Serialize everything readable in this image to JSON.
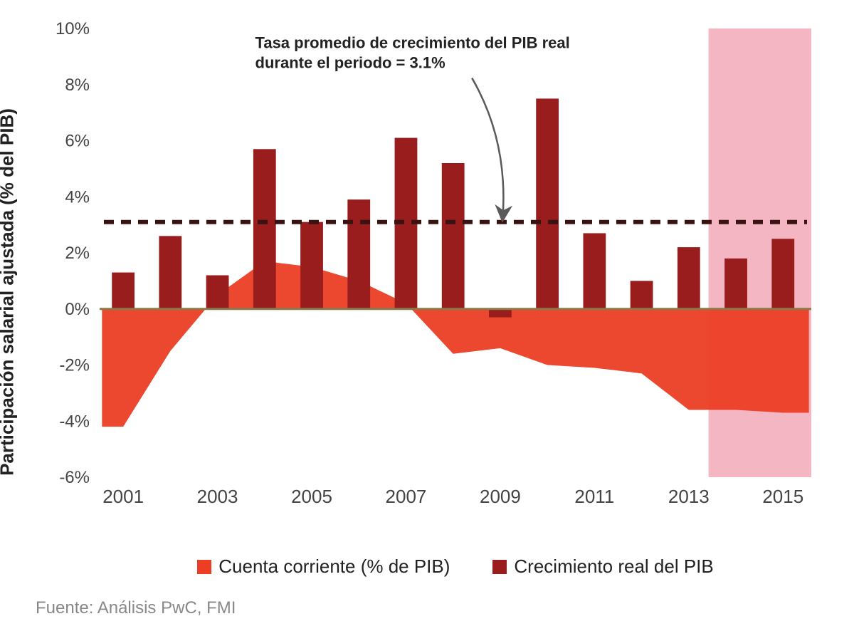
{
  "chart": {
    "type": "bar+area",
    "y_axis_label": "Participación salarial ajustada (% del PIB)",
    "ylim": [
      -6,
      10
    ],
    "ytick_step": 2,
    "yticks": [
      "-6%",
      "-4%",
      "-2%",
      "0%",
      "2%",
      "4%",
      "6%",
      "8%",
      "10%"
    ],
    "years": [
      2001,
      2002,
      2003,
      2004,
      2005,
      2006,
      2007,
      2008,
      2009,
      2010,
      2011,
      2012,
      2013,
      2014,
      2015
    ],
    "xticks": [
      "2001",
      "2003",
      "2005",
      "2007",
      "2009",
      "2011",
      "2013",
      "2015"
    ],
    "xtick_years": [
      2001,
      2003,
      2005,
      2007,
      2009,
      2011,
      2013,
      2015
    ],
    "bar_values": [
      1.3,
      2.6,
      1.2,
      5.7,
      3.1,
      3.9,
      6.1,
      5.2,
      -0.3,
      7.5,
      2.7,
      1.0,
      2.2,
      1.8,
      2.5
    ],
    "area_values": [
      -4.2,
      -1.5,
      0.5,
      1.7,
      1.5,
      1.0,
      0.2,
      -1.6,
      -1.4,
      -2.0,
      -2.1,
      -2.3,
      -3.6,
      -3.6,
      -3.7
    ],
    "reference_line_value": 3.1,
    "annotation": {
      "line1": "Tasa promedio de crecimiento del PIB real",
      "line2": "durante el periodo = 3.1%"
    },
    "highlight_band": {
      "start_year": 2013.42,
      "end_year": 2015.6
    },
    "colors": {
      "bar": "#9a1d1d",
      "area": "#eb3e25",
      "reference_line": "#3a1212",
      "axis": "#8a7a4a",
      "highlight": "#f5b6c3",
      "background": "#ffffff",
      "text": "#222222",
      "source_text": "#8a8a8a",
      "annotation_arrow": "#5a5a5a"
    },
    "bar_width_ratio": 0.48,
    "reference_dash": "14 10",
    "reference_line_width": 6,
    "axis_line_width": 3,
    "font_family": "Arial, Helvetica, sans-serif",
    "label_fontsize": 26,
    "tick_fontsize": 24,
    "annotation_fontsize": 22
  },
  "legend": {
    "area": "Cuenta corriente (% de PIB)",
    "bar": "Crecimiento real del PIB"
  },
  "source": "Fuente: Análisis PwC, FMI"
}
